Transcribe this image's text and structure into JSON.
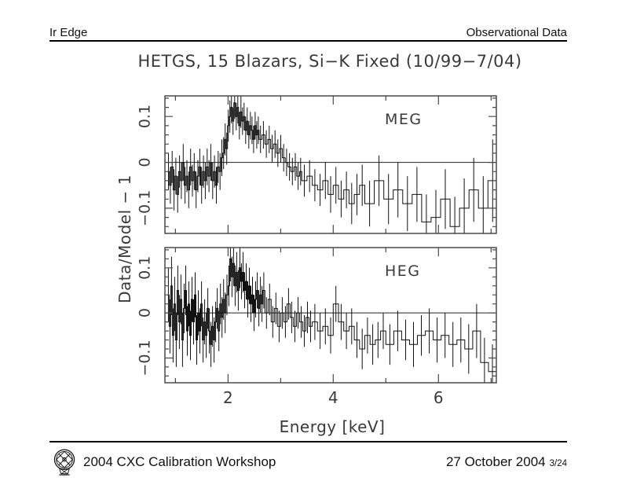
{
  "header": {
    "left": "Ir Edge",
    "right": "Observational Data"
  },
  "title": "HETGS, 15 Blazars, Si−K Fixed (10/99−7/04)",
  "footer": {
    "workshop": "2004 CXC Calibration Workshop",
    "date": "27 October 2004",
    "page": "3/24",
    "logo_icon": "cxc-chandra-observatory-logo"
  },
  "figure": {
    "xlabel": "Energy [keV]",
    "ylabel": "Data/Model − 1",
    "panel_labels": [
      "MEG",
      "HEG"
    ],
    "frame_color": "#4a4a4a",
    "data_color": "#111111",
    "text_color": "#3a3a3a"
  },
  "chart_data": [
    {
      "type": "line",
      "style": "step-histogram-with-errorbars",
      "panel_label": "MEG",
      "xlabel": "Energy [keV]",
      "ylabel": "Data/Model − 1",
      "xlim": [
        0.8,
        7.1
      ],
      "ylim": [
        -0.155,
        0.145
      ],
      "xticks_major": [
        2,
        4,
        6
      ],
      "xticks_minor": [
        1,
        3,
        5,
        7
      ],
      "yticks_major": [
        0.1,
        0,
        -0.1
      ],
      "ytick_labels": [
        "0.1",
        "0",
        "−0.1"
      ],
      "zero_line_y": 0,
      "points": [
        [
          0.85,
          -0.02,
          0.04
        ],
        [
          0.885,
          -0.05,
          0.04
        ],
        [
          0.92,
          -0.01,
          0.035
        ],
        [
          0.955,
          -0.06,
          0.045
        ],
        [
          0.99,
          -0.03,
          0.04
        ],
        [
          1.025,
          -0.07,
          0.04
        ],
        [
          1.06,
          -0.02,
          0.035
        ],
        [
          1.095,
          -0.04,
          0.04
        ],
        [
          1.13,
          0.0,
          0.04
        ],
        [
          1.165,
          -0.05,
          0.04
        ],
        [
          1.2,
          -0.03,
          0.035
        ],
        [
          1.235,
          -0.06,
          0.04
        ],
        [
          1.27,
          -0.01,
          0.04
        ],
        [
          1.305,
          -0.04,
          0.035
        ],
        [
          1.34,
          -0.02,
          0.04
        ],
        [
          1.375,
          -0.06,
          0.04
        ],
        [
          1.41,
          -0.03,
          0.035
        ],
        [
          1.445,
          -0.01,
          0.04
        ],
        [
          1.48,
          -0.05,
          0.04
        ],
        [
          1.515,
          -0.02,
          0.035
        ],
        [
          1.55,
          -0.04,
          0.04
        ],
        [
          1.585,
          -0.01,
          0.04
        ],
        [
          1.62,
          -0.03,
          0.035
        ],
        [
          1.655,
          0.0,
          0.04
        ],
        [
          1.69,
          -0.04,
          0.04
        ],
        [
          1.725,
          -0.02,
          0.035
        ],
        [
          1.76,
          -0.05,
          0.04
        ],
        [
          1.795,
          -0.01,
          0.035
        ],
        [
          1.83,
          -0.02,
          0.04
        ],
        [
          1.865,
          0.01,
          0.04
        ],
        [
          1.9,
          0.02,
          0.035
        ],
        [
          1.93,
          0.05,
          0.035
        ],
        [
          1.96,
          0.03,
          0.035
        ],
        [
          1.99,
          0.08,
          0.035
        ],
        [
          2.02,
          0.1,
          0.035
        ],
        [
          2.05,
          0.12,
          0.035
        ],
        [
          2.08,
          0.09,
          0.03
        ],
        [
          2.11,
          0.13,
          0.035
        ],
        [
          2.14,
          0.1,
          0.03
        ],
        [
          2.17,
          0.12,
          0.035
        ],
        [
          2.2,
          0.08,
          0.03
        ],
        [
          2.23,
          0.11,
          0.035
        ],
        [
          2.26,
          0.09,
          0.03
        ],
        [
          2.29,
          0.1,
          0.03
        ],
        [
          2.32,
          0.07,
          0.03
        ],
        [
          2.35,
          0.09,
          0.03
        ],
        [
          2.38,
          0.06,
          0.03
        ],
        [
          2.41,
          0.08,
          0.03
        ],
        [
          2.44,
          0.07,
          0.03
        ],
        [
          2.47,
          0.05,
          0.03
        ],
        [
          2.5,
          0.08,
          0.03
        ],
        [
          2.53,
          0.06,
          0.03
        ],
        [
          2.56,
          0.07,
          0.03
        ],
        [
          2.59,
          0.05,
          0.03
        ],
        [
          2.645,
          0.06,
          0.03
        ],
        [
          2.7,
          0.04,
          0.03
        ],
        [
          2.755,
          0.05,
          0.03
        ],
        [
          2.81,
          0.03,
          0.03
        ],
        [
          2.865,
          0.04,
          0.03
        ],
        [
          2.92,
          0.02,
          0.03
        ],
        [
          2.975,
          0.03,
          0.03
        ],
        [
          3.03,
          0.01,
          0.03
        ],
        [
          3.085,
          0.0,
          0.03
        ],
        [
          3.14,
          -0.01,
          0.03
        ],
        [
          3.195,
          -0.02,
          0.03
        ],
        [
          3.25,
          -0.01,
          0.03
        ],
        [
          3.305,
          -0.03,
          0.03
        ],
        [
          3.36,
          -0.02,
          0.03
        ],
        [
          3.4,
          -0.04,
          0.035
        ],
        [
          3.5,
          -0.03,
          0.035
        ],
        [
          3.6,
          -0.05,
          0.035
        ],
        [
          3.7,
          -0.06,
          0.035
        ],
        [
          3.8,
          -0.04,
          0.04
        ],
        [
          3.9,
          -0.07,
          0.04
        ],
        [
          4.0,
          -0.05,
          0.04
        ],
        [
          4.1,
          -0.08,
          0.04
        ],
        [
          4.2,
          -0.06,
          0.04
        ],
        [
          4.3,
          -0.09,
          0.045
        ],
        [
          4.4,
          -0.07,
          0.045
        ],
        [
          4.5,
          -0.05,
          0.045
        ],
        [
          4.6,
          -0.09,
          0.05
        ],
        [
          4.78,
          -0.04,
          0.055
        ],
        [
          4.96,
          -0.08,
          0.055
        ],
        [
          5.14,
          -0.06,
          0.06
        ],
        [
          5.32,
          -0.09,
          0.06
        ],
        [
          5.5,
          -0.07,
          0.06
        ],
        [
          5.68,
          -0.13,
          0.06
        ],
        [
          5.86,
          -0.12,
          0.06
        ],
        [
          6.04,
          -0.08,
          0.065
        ],
        [
          6.22,
          -0.14,
          0.065
        ],
        [
          6.4,
          -0.1,
          0.065
        ],
        [
          6.58,
          -0.06,
          0.07
        ],
        [
          6.76,
          -0.1,
          0.07
        ],
        [
          6.94,
          -0.04,
          0.09
        ]
      ]
    },
    {
      "type": "line",
      "style": "step-histogram-with-errorbars",
      "panel_label": "HEG",
      "xlabel": "Energy [keV]",
      "ylabel": "Data/Model − 1",
      "xlim": [
        0.8,
        7.1
      ],
      "ylim": [
        -0.155,
        0.145
      ],
      "xticks_major": [
        2,
        4,
        6
      ],
      "xticks_minor": [
        1,
        3,
        5,
        7
      ],
      "yticks_major": [
        0.1,
        0,
        -0.1
      ],
      "ytick_labels": [
        "0.1",
        "0",
        "−0.1"
      ],
      "zero_line_y": 0,
      "points": [
        [
          0.85,
          0.04,
          0.06
        ],
        [
          0.88,
          -0.03,
          0.06
        ],
        [
          0.91,
          0.06,
          0.065
        ],
        [
          0.94,
          -0.05,
          0.06
        ],
        [
          0.97,
          0.02,
          0.06
        ],
        [
          1.0,
          -0.06,
          0.06
        ],
        [
          1.03,
          0.05,
          0.055
        ],
        [
          1.06,
          -0.02,
          0.06
        ],
        [
          1.09,
          0.03,
          0.055
        ],
        [
          1.12,
          -0.06,
          0.06
        ],
        [
          1.15,
          0.01,
          0.055
        ],
        [
          1.18,
          0.05,
          0.055
        ],
        [
          1.21,
          -0.04,
          0.055
        ],
        [
          1.24,
          0.02,
          0.05
        ],
        [
          1.27,
          -0.05,
          0.055
        ],
        [
          1.3,
          0.03,
          0.05
        ],
        [
          1.33,
          -0.02,
          0.05
        ],
        [
          1.36,
          0.04,
          0.05
        ],
        [
          1.39,
          -0.06,
          0.055
        ],
        [
          1.42,
          0.0,
          0.05
        ],
        [
          1.45,
          -0.04,
          0.05
        ],
        [
          1.48,
          0.02,
          0.05
        ],
        [
          1.51,
          -0.06,
          0.05
        ],
        [
          1.54,
          -0.02,
          0.05
        ],
        [
          1.57,
          -0.05,
          0.05
        ],
        [
          1.6,
          0.01,
          0.045
        ],
        [
          1.63,
          -0.04,
          0.05
        ],
        [
          1.66,
          -0.07,
          0.05
        ],
        [
          1.69,
          -0.03,
          0.045
        ],
        [
          1.72,
          -0.06,
          0.05
        ],
        [
          1.75,
          -0.02,
          0.045
        ],
        [
          1.78,
          0.01,
          0.045
        ],
        [
          1.81,
          -0.04,
          0.045
        ],
        [
          1.84,
          0.02,
          0.045
        ],
        [
          1.87,
          -0.01,
          0.045
        ],
        [
          1.9,
          0.03,
          0.045
        ],
        [
          1.93,
          0.0,
          0.045
        ],
        [
          1.96,
          0.04,
          0.045
        ],
        [
          2.0,
          0.06,
          0.045
        ],
        [
          2.03,
          0.12,
          0.05
        ],
        [
          2.06,
          0.08,
          0.045
        ],
        [
          2.09,
          0.11,
          0.05
        ],
        [
          2.12,
          0.06,
          0.045
        ],
        [
          2.15,
          0.09,
          0.045
        ],
        [
          2.18,
          0.05,
          0.045
        ],
        [
          2.21,
          0.1,
          0.045
        ],
        [
          2.24,
          0.07,
          0.04
        ],
        [
          2.27,
          0.09,
          0.045
        ],
        [
          2.3,
          0.05,
          0.04
        ],
        [
          2.33,
          0.07,
          0.04
        ],
        [
          2.36,
          0.03,
          0.04
        ],
        [
          2.39,
          0.06,
          0.04
        ],
        [
          2.42,
          0.02,
          0.04
        ],
        [
          2.45,
          0.04,
          0.04
        ],
        [
          2.48,
          0.0,
          0.04
        ],
        [
          2.51,
          0.03,
          0.04
        ],
        [
          2.54,
          0.05,
          0.04
        ],
        [
          2.57,
          0.01,
          0.04
        ],
        [
          2.6,
          0.04,
          0.04
        ],
        [
          2.63,
          0.02,
          0.04
        ],
        [
          2.66,
          0.05,
          0.04
        ],
        [
          2.7,
          0.0,
          0.035
        ],
        [
          2.76,
          0.03,
          0.035
        ],
        [
          2.82,
          -0.02,
          0.035
        ],
        [
          2.88,
          0.01,
          0.035
        ],
        [
          2.94,
          -0.03,
          0.035
        ],
        [
          3.0,
          0.0,
          0.035
        ],
        [
          3.06,
          -0.02,
          0.035
        ],
        [
          3.12,
          0.02,
          0.035
        ],
        [
          3.18,
          -0.01,
          0.035
        ],
        [
          3.24,
          -0.03,
          0.035
        ],
        [
          3.3,
          0.0,
          0.035
        ],
        [
          3.36,
          -0.02,
          0.035
        ],
        [
          3.42,
          -0.04,
          0.035
        ],
        [
          3.48,
          -0.01,
          0.035
        ],
        [
          3.54,
          -0.03,
          0.035
        ],
        [
          3.6,
          -0.02,
          0.04
        ],
        [
          3.7,
          -0.04,
          0.04
        ],
        [
          3.8,
          -0.03,
          0.04
        ],
        [
          3.9,
          -0.05,
          0.04
        ],
        [
          4.0,
          0.02,
          0.04
        ],
        [
          4.1,
          -0.02,
          0.04
        ],
        [
          4.2,
          -0.04,
          0.04
        ],
        [
          4.3,
          -0.03,
          0.04
        ],
        [
          4.4,
          -0.06,
          0.04
        ],
        [
          4.5,
          -0.08,
          0.045
        ],
        [
          4.6,
          -0.05,
          0.04
        ],
        [
          4.7,
          -0.07,
          0.045
        ],
        [
          4.8,
          -0.06,
          0.04
        ],
        [
          4.9,
          -0.04,
          0.04
        ],
        [
          5.0,
          -0.07,
          0.045
        ],
        [
          5.15,
          -0.04,
          0.045
        ],
        [
          5.3,
          -0.06,
          0.045
        ],
        [
          5.45,
          -0.07,
          0.05
        ],
        [
          5.6,
          -0.05,
          0.045
        ],
        [
          5.75,
          -0.04,
          0.05
        ],
        [
          5.9,
          -0.06,
          0.05
        ],
        [
          6.05,
          -0.05,
          0.05
        ],
        [
          6.2,
          -0.07,
          0.05
        ],
        [
          6.35,
          -0.06,
          0.05
        ],
        [
          6.5,
          -0.08,
          0.055
        ],
        [
          6.65,
          -0.04,
          0.06
        ],
        [
          6.8,
          -0.11,
          0.055
        ],
        [
          6.95,
          -0.13,
          0.06
        ]
      ]
    }
  ]
}
